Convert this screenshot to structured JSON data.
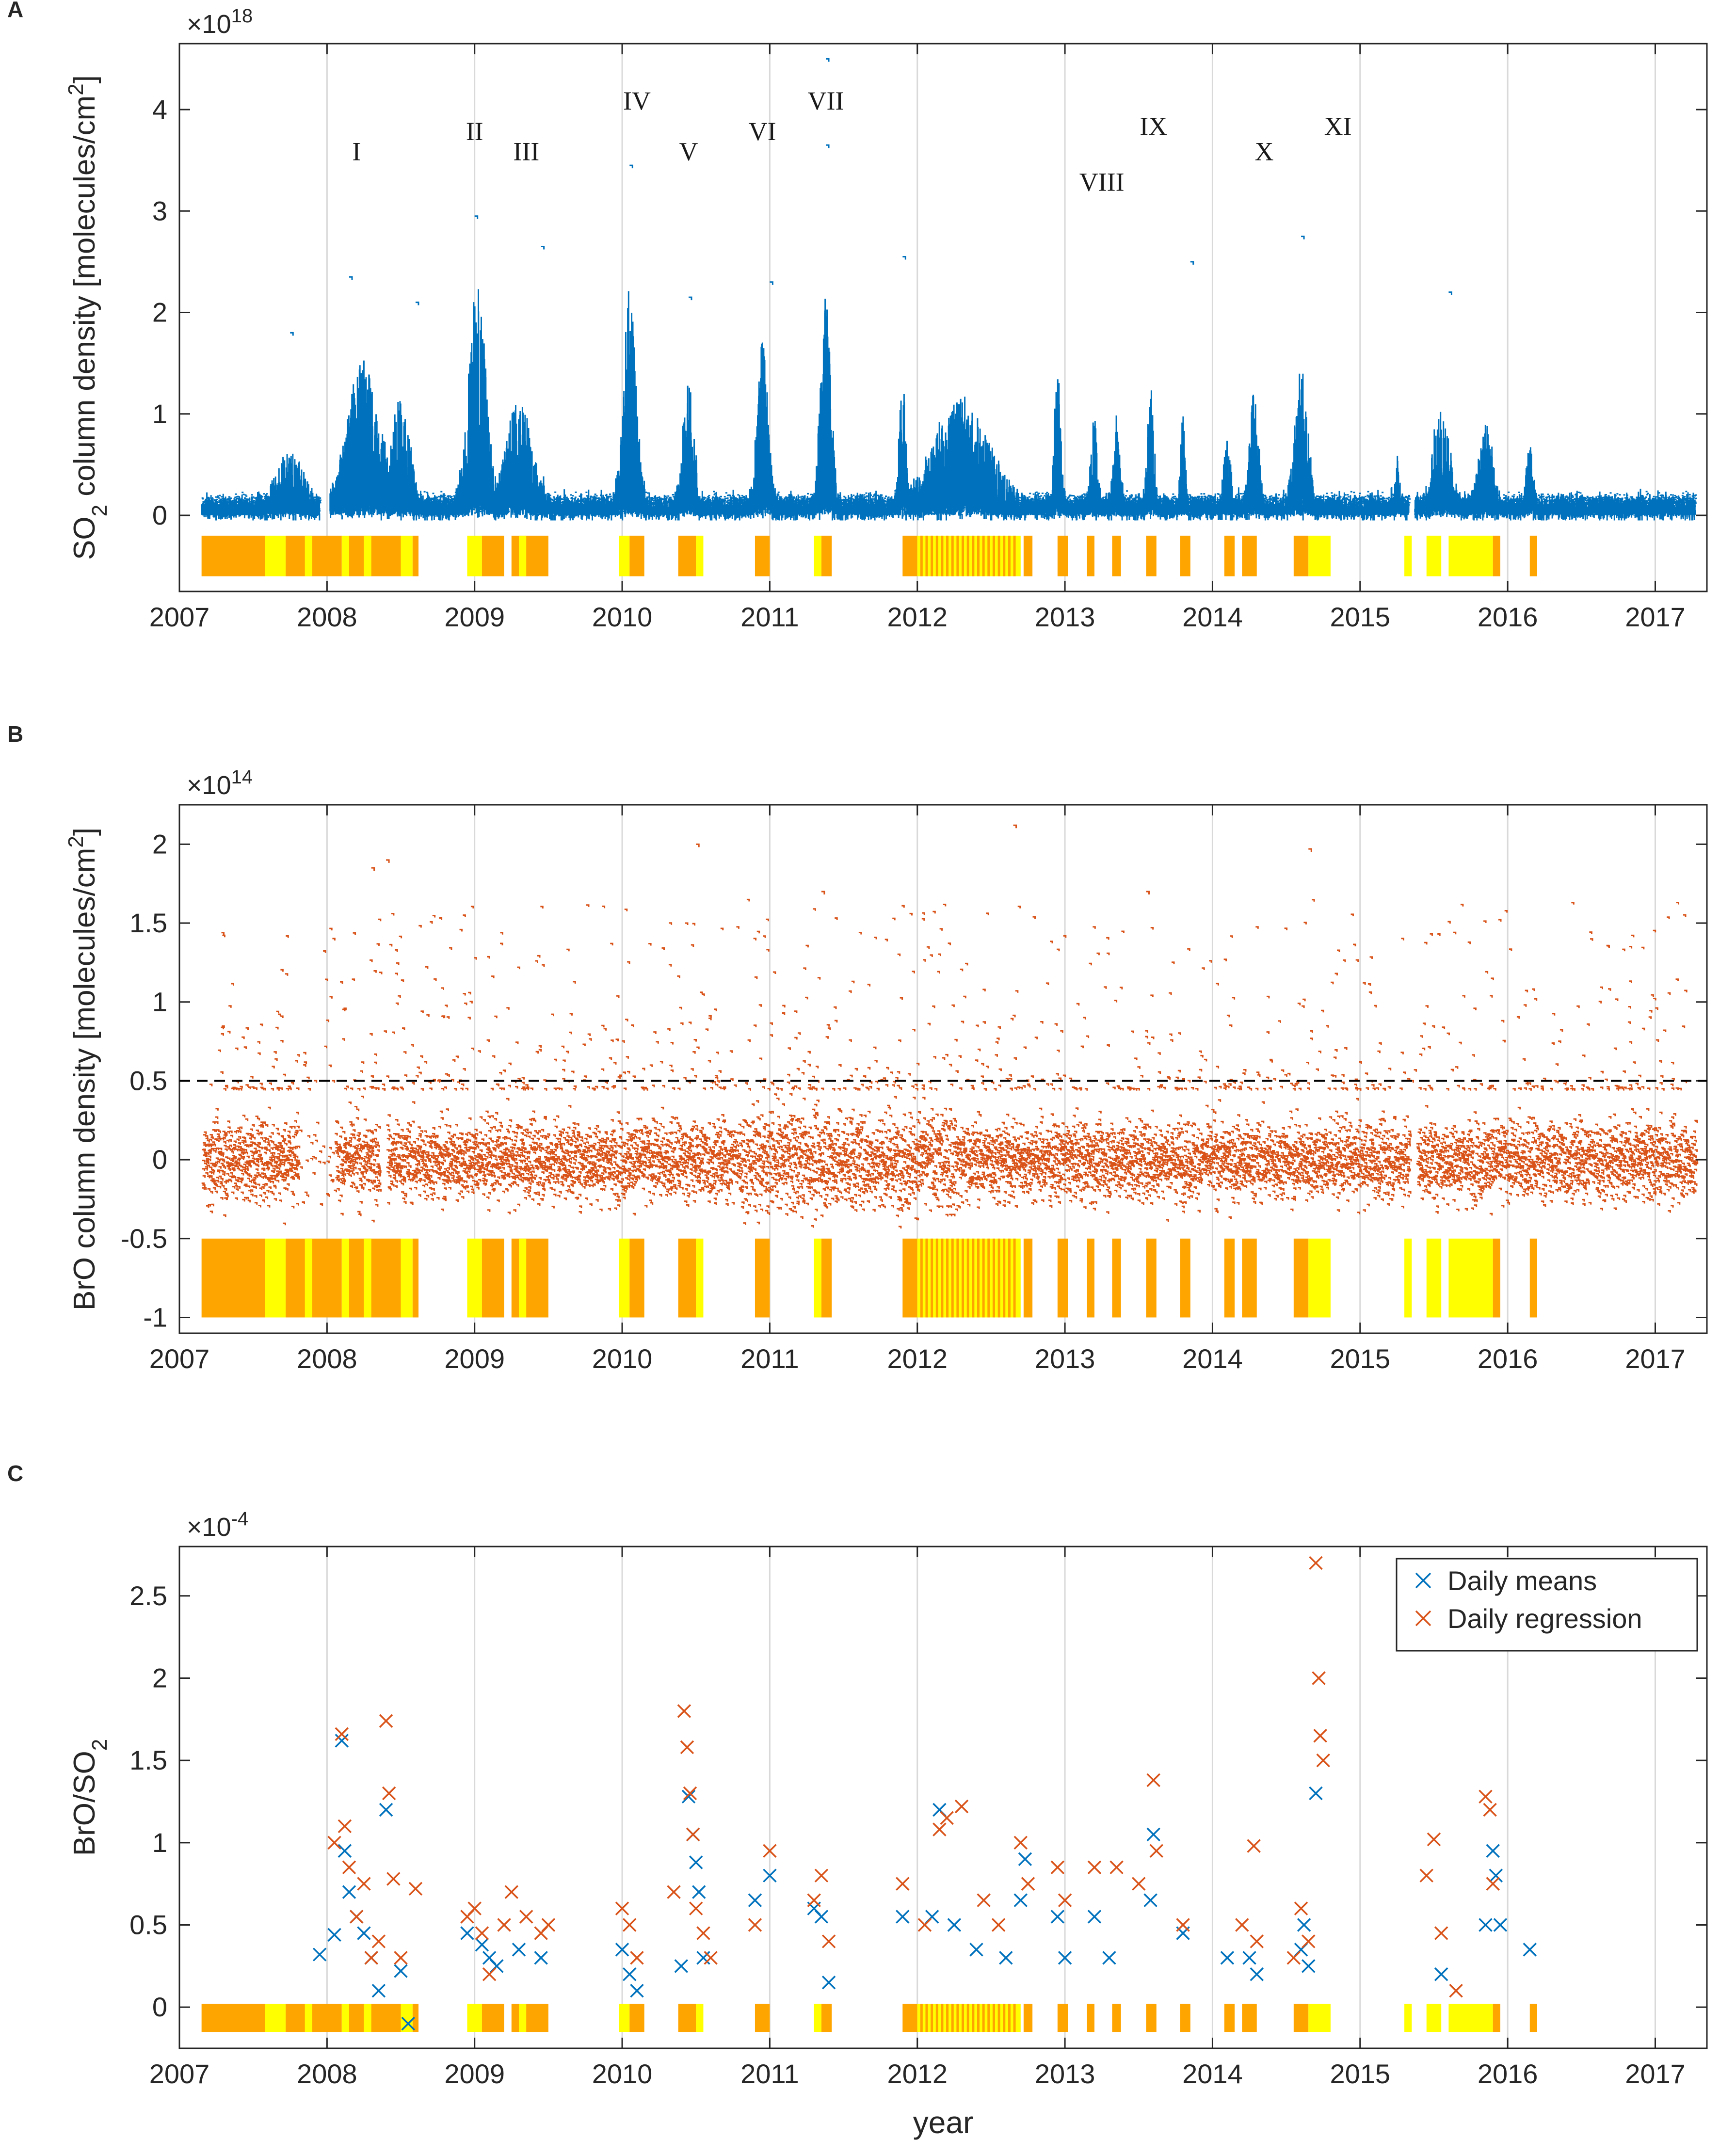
{
  "colors": {
    "so2": "#0072BD",
    "bro": "#D95319",
    "daily_means": "#0072BD",
    "daily_regression": "#D95319",
    "flag_yellow": "#FFFF00",
    "flag_orange": "#FFA500",
    "grid": "#d9d9d9",
    "axis": "#262626",
    "threshold": "#000000"
  },
  "chart_data": [
    {
      "id": "A",
      "panel_label": "A",
      "type": "scatter",
      "ylabel_pre": "SO",
      "ylabel_sub": "2",
      "ylabel_post": " column density [molecules/cm",
      "ylabel_sup": "2",
      "ylabel_end": "]",
      "exponent_base": "×10",
      "exponent_power": "18",
      "xlim": [
        2007,
        2017.35
      ],
      "ylim": [
        -0.75,
        4.65
      ],
      "x_ticks": [
        2007,
        2008,
        2009,
        2010,
        2011,
        2012,
        2013,
        2014,
        2015,
        2016,
        2017
      ],
      "x_tick_labels": [
        "2007",
        "2008",
        "2009",
        "2010",
        "2011",
        "2012",
        "2013",
        "2014",
        "2015",
        "2016",
        "2017"
      ],
      "y_ticks": [
        0,
        1,
        2,
        3,
        4
      ],
      "y_tick_labels": [
        "0",
        "1",
        "2",
        "3",
        "4"
      ],
      "grid": "vertical",
      "series": [
        {
          "name": "SO2 column density",
          "color": "#0072BD"
        }
      ],
      "flag_band": [
        -0.6,
        -0.2
      ],
      "annotations": [
        {
          "text": "I",
          "x": 2008.2,
          "y": 3.5
        },
        {
          "text": "II",
          "x": 2009.0,
          "y": 3.7
        },
        {
          "text": "III",
          "x": 2009.35,
          "y": 3.5
        },
        {
          "text": "IV",
          "x": 2010.1,
          "y": 4.0
        },
        {
          "text": "V",
          "x": 2010.45,
          "y": 3.5
        },
        {
          "text": "VI",
          "x": 2010.95,
          "y": 3.7
        },
        {
          "text": "VII",
          "x": 2011.38,
          "y": 4.0
        },
        {
          "text": "VIII",
          "x": 2013.25,
          "y": 3.2
        },
        {
          "text": "IX",
          "x": 2013.6,
          "y": 3.75
        },
        {
          "text": "X",
          "x": 2014.35,
          "y": 3.5
        },
        {
          "text": "XI",
          "x": 2014.85,
          "y": 3.75
        }
      ]
    },
    {
      "id": "B",
      "panel_label": "B",
      "type": "scatter",
      "ylabel": "BrO column density [molecules/cm",
      "ylabel_sup": "2",
      "ylabel_end": "]",
      "exponent_base": "×10",
      "exponent_power": "14",
      "xlim": [
        2007,
        2017.35
      ],
      "ylim": [
        -1.1,
        2.25
      ],
      "x_ticks": [
        2007,
        2008,
        2009,
        2010,
        2011,
        2012,
        2013,
        2014,
        2015,
        2016,
        2017
      ],
      "x_tick_labels": [
        "2007",
        "2008",
        "2009",
        "2010",
        "2011",
        "2012",
        "2013",
        "2014",
        "2015",
        "2016",
        "2017"
      ],
      "y_ticks": [
        -1,
        -0.5,
        0,
        0.5,
        1,
        1.5,
        2
      ],
      "y_tick_labels": [
        "-1",
        "-0.5",
        "0",
        "0.5",
        "1",
        "1.5",
        "2"
      ],
      "grid": "vertical",
      "threshold_line": 0.5,
      "series": [
        {
          "name": "BrO column density",
          "color": "#D95319"
        }
      ],
      "flag_band": [
        -1.0,
        -0.5
      ]
    },
    {
      "id": "C",
      "panel_label": "C",
      "type": "scatter",
      "ylabel_pre": "BrO/SO",
      "ylabel_sub": "2",
      "exponent_base": "×10",
      "exponent_power": "-4",
      "xlabel": "year",
      "xlim": [
        2007,
        2017.35
      ],
      "ylim": [
        -0.25,
        2.8
      ],
      "x_ticks": [
        2007,
        2008,
        2009,
        2010,
        2011,
        2012,
        2013,
        2014,
        2015,
        2016,
        2017
      ],
      "x_tick_labels": [
        "2007",
        "2008",
        "2009",
        "2010",
        "2011",
        "2012",
        "2013",
        "2014",
        "2015",
        "2016",
        "2017"
      ],
      "y_ticks": [
        0,
        0.5,
        1,
        1.5,
        2,
        2.5
      ],
      "y_tick_labels": [
        "0",
        "0.5",
        "1",
        "1.5",
        "2",
        "2.5"
      ],
      "grid": "vertical",
      "flag_band": [
        -0.15,
        0.02
      ],
      "legend": {
        "position": "top-right",
        "entries": [
          "Daily means",
          "Daily regression"
        ]
      },
      "series": [
        {
          "name": "Daily means",
          "marker": "x",
          "color": "#0072BD",
          "points": [
            [
              2007.95,
              0.32
            ],
            [
              2008.05,
              0.44
            ],
            [
              2008.1,
              1.62
            ],
            [
              2008.12,
              0.95
            ],
            [
              2008.15,
              0.7
            ],
            [
              2008.2,
              0.55
            ],
            [
              2008.25,
              0.45
            ],
            [
              2008.3,
              0.3
            ],
            [
              2008.35,
              0.1
            ],
            [
              2008.4,
              1.2
            ],
            [
              2008.5,
              0.22
            ],
            [
              2008.55,
              -0.1
            ],
            [
              2008.95,
              0.45
            ],
            [
              2009.05,
              0.38
            ],
            [
              2009.1,
              0.3
            ],
            [
              2009.15,
              0.25
            ],
            [
              2009.3,
              0.35
            ],
            [
              2009.45,
              0.3
            ],
            [
              2010.0,
              0.35
            ],
            [
              2010.05,
              0.2
            ],
            [
              2010.1,
              0.1
            ],
            [
              2010.4,
              0.25
            ],
            [
              2010.45,
              1.28
            ],
            [
              2010.48,
              1.05
            ],
            [
              2010.5,
              0.88
            ],
            [
              2010.52,
              0.7
            ],
            [
              2010.55,
              0.3
            ],
            [
              2010.9,
              0.65
            ],
            [
              2011.0,
              0.8
            ],
            [
              2011.3,
              0.6
            ],
            [
              2011.35,
              0.55
            ],
            [
              2011.4,
              0.15
            ],
            [
              2011.9,
              0.55
            ],
            [
              2012.1,
              0.55
            ],
            [
              2012.15,
              1.2
            ],
            [
              2012.25,
              0.5
            ],
            [
              2012.4,
              0.35
            ],
            [
              2012.6,
              0.3
            ],
            [
              2012.7,
              0.65
            ],
            [
              2012.73,
              0.9
            ],
            [
              2012.95,
              0.55
            ],
            [
              2013.0,
              0.3
            ],
            [
              2013.2,
              0.55
            ],
            [
              2013.3,
              0.3
            ],
            [
              2013.6,
              1.05
            ],
            [
              2013.58,
              0.65
            ],
            [
              2013.8,
              0.45
            ],
            [
              2014.1,
              0.3
            ],
            [
              2014.25,
              0.3
            ],
            [
              2014.3,
              0.2
            ],
            [
              2014.6,
              0.35
            ],
            [
              2014.62,
              0.5
            ],
            [
              2014.65,
              0.25
            ],
            [
              2014.7,
              1.3
            ],
            [
              2015.55,
              0.2
            ],
            [
              2015.85,
              0.5
            ],
            [
              2015.9,
              0.95
            ],
            [
              2015.92,
              0.8
            ],
            [
              2015.95,
              0.5
            ],
            [
              2016.15,
              0.35
            ]
          ]
        },
        {
          "name": "Daily regression",
          "marker": "x",
          "color": "#D95319",
          "points": [
            [
              2008.05,
              1.0
            ],
            [
              2008.1,
              1.66
            ],
            [
              2008.12,
              1.1
            ],
            [
              2008.15,
              0.85
            ],
            [
              2008.2,
              0.55
            ],
            [
              2008.25,
              0.75
            ],
            [
              2008.3,
              0.3
            ],
            [
              2008.35,
              0.4
            ],
            [
              2008.4,
              1.74
            ],
            [
              2008.42,
              1.3
            ],
            [
              2008.45,
              0.78
            ],
            [
              2008.5,
              0.3
            ],
            [
              2008.6,
              0.72
            ],
            [
              2008.95,
              0.55
            ],
            [
              2009.0,
              0.6
            ],
            [
              2009.05,
              0.45
            ],
            [
              2009.1,
              0.2
            ],
            [
              2009.2,
              0.5
            ],
            [
              2009.25,
              0.7
            ],
            [
              2009.35,
              0.55
            ],
            [
              2009.45,
              0.45
            ],
            [
              2009.5,
              0.5
            ],
            [
              2010.0,
              0.6
            ],
            [
              2010.05,
              0.5
            ],
            [
              2010.1,
              0.3
            ],
            [
              2010.35,
              0.7
            ],
            [
              2010.42,
              1.8
            ],
            [
              2010.44,
              1.58
            ],
            [
              2010.46,
              1.3
            ],
            [
              2010.48,
              1.05
            ],
            [
              2010.5,
              0.6
            ],
            [
              2010.55,
              0.45
            ],
            [
              2010.6,
              0.3
            ],
            [
              2010.9,
              0.5
            ],
            [
              2011.0,
              0.95
            ],
            [
              2011.3,
              0.65
            ],
            [
              2011.35,
              0.8
            ],
            [
              2011.4,
              0.4
            ],
            [
              2011.9,
              0.75
            ],
            [
              2012.05,
              0.5
            ],
            [
              2012.15,
              1.08
            ],
            [
              2012.2,
              1.15
            ],
            [
              2012.3,
              1.22
            ],
            [
              2012.45,
              0.65
            ],
            [
              2012.55,
              0.5
            ],
            [
              2012.7,
              1.0
            ],
            [
              2012.75,
              0.75
            ],
            [
              2012.95,
              0.85
            ],
            [
              2013.0,
              0.65
            ],
            [
              2013.2,
              0.85
            ],
            [
              2013.35,
              0.85
            ],
            [
              2013.5,
              0.75
            ],
            [
              2013.6,
              1.38
            ],
            [
              2013.62,
              0.95
            ],
            [
              2013.8,
              0.5
            ],
            [
              2014.2,
              0.5
            ],
            [
              2014.28,
              0.98
            ],
            [
              2014.3,
              0.4
            ],
            [
              2014.55,
              0.3
            ],
            [
              2014.6,
              0.6
            ],
            [
              2014.65,
              0.4
            ],
            [
              2014.7,
              2.7
            ],
            [
              2014.72,
              2.0
            ],
            [
              2014.73,
              1.65
            ],
            [
              2014.75,
              1.5
            ],
            [
              2015.45,
              0.8
            ],
            [
              2015.5,
              1.02
            ],
            [
              2015.55,
              0.45
            ],
            [
              2015.65,
              0.1
            ],
            [
              2015.85,
              1.28
            ],
            [
              2015.88,
              1.2
            ],
            [
              2015.9,
              0.75
            ]
          ]
        }
      ]
    }
  ]
}
